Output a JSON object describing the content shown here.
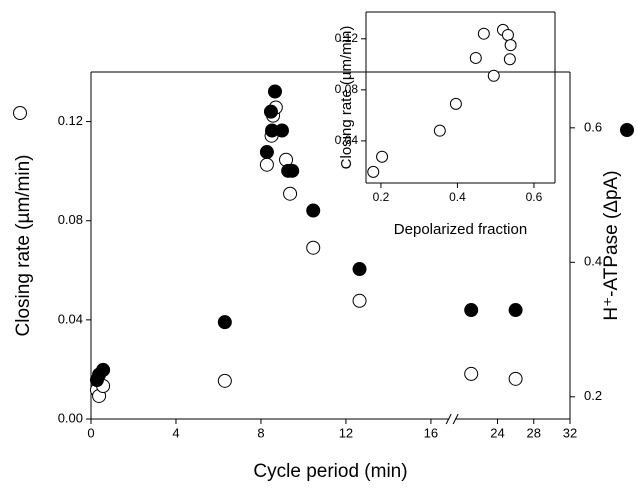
{
  "chart_data": [
    {
      "type": "scatter",
      "x_label": "Cycle period (min)",
      "y_label": "Closing rate (µm/min)",
      "y2_label": "H⁺-ATPase (ΔpA)",
      "xlim": [
        0,
        32
      ],
      "x_break": [
        17,
        19
      ],
      "xticks": [
        0,
        4,
        8,
        12,
        16,
        24,
        28,
        32
      ],
      "ylim": [
        0,
        0.14
      ],
      "yticks": [
        {
          "value": 0,
          "label": "0.00"
        },
        0.04,
        0.08,
        0.12
      ],
      "y2lim": [
        0.167,
        0.683
      ],
      "y2ticks": [
        0.2,
        0.4,
        0.6
      ],
      "series": [
        {
          "color": "#000000",
          "filled": false,
          "x": [
            0.28,
            0.38,
            0.57,
            6.3,
            8.28,
            8.5,
            8.57,
            8.7,
            9.18,
            9.37,
            10.46,
            12.64,
            21.1,
            26
          ],
          "values": [
            0.0117,
            0.0093,
            0.0133,
            0.0154,
            0.1026,
            0.1143,
            0.1224,
            0.1257,
            0.1046,
            0.0909,
            0.0691,
            0.0477,
            0.0182,
            0.0162
          ]
        },
        {
          "color": "#000000",
          "filled": true,
          "axis": "y2",
          "x": [
            0.28,
            0.38,
            0.57,
            6.3,
            8.28,
            8.47,
            8.52,
            8.66,
            8.99,
            9.28,
            9.47,
            10.46,
            12.64,
            21.1,
            26
          ],
          "values": [
            0.225,
            0.233,
            0.24,
            0.311,
            0.564,
            0.624,
            0.596,
            0.654,
            0.596,
            0.536,
            0.536,
            0.477,
            0.39,
            0.329,
            0.329
          ]
        }
      ]
    },
    {
      "type": "scatter",
      "x_label": "Depolarized fraction",
      "y_label": "Closing rate (µm/min)",
      "xlim": [
        0.161,
        0.655
      ],
      "xticks": [
        0.2,
        0.4,
        0.6
      ],
      "ylim": [
        0.007,
        0.141
      ],
      "yticks": [
        0.04,
        0.08,
        0.12
      ],
      "series": [
        {
          "color": "#000000",
          "filled": false,
          "x": [
            0.18,
            0.203,
            0.354,
            0.396,
            0.448,
            0.469,
            0.495,
            0.519,
            0.532,
            0.539,
            0.537
          ],
          "values": [
            0.0157,
            0.0276,
            0.048,
            0.069,
            0.105,
            0.124,
            0.091,
            0.127,
            0.123,
            0.115,
            0.104
          ]
        }
      ]
    }
  ]
}
